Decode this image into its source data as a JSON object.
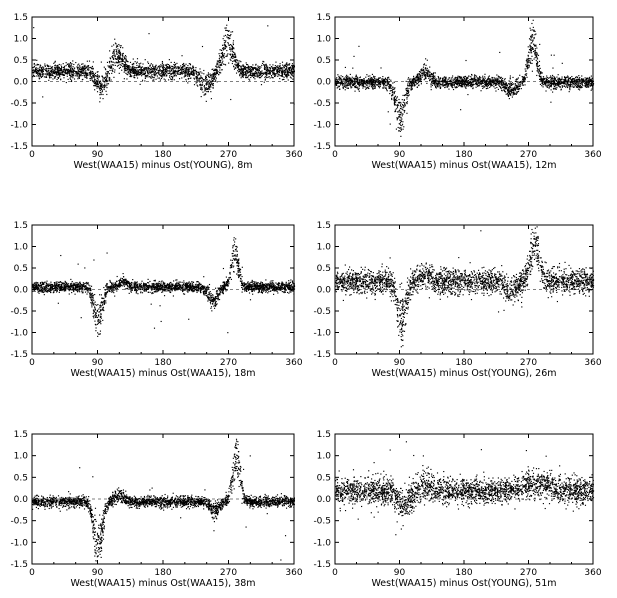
{
  "figure": {
    "x_ticks": [
      "0",
      "90",
      "180",
      "270",
      "360"
    ],
    "y_ticks": [
      "1.5",
      "1.0",
      "0.5",
      "0.0",
      "-0.5",
      "-1.0",
      "-1.5"
    ]
  },
  "chart_data": [
    {
      "type": "scatter",
      "xlabel": "West(WAA15) minus Ost(YOUNG), 8m",
      "xlim": [
        0,
        360
      ],
      "ylim": [
        -1.5,
        1.5
      ],
      "grid": false,
      "baseline": 0.25,
      "features": [
        {
          "x": 115,
          "peak": 0.8,
          "width": 11
        },
        {
          "x": 268,
          "peak": 1.1,
          "width": 10
        },
        {
          "x": 95,
          "peak": -0.2,
          "width": 12
        },
        {
          "x": 238,
          "peak": -0.15,
          "width": 12
        }
      ],
      "noise": 0.09
    },
    {
      "type": "scatter",
      "xlabel": "West(WAA15) minus Ost(WAA15), 12m",
      "xlim": [
        0,
        360
      ],
      "ylim": [
        -1.5,
        1.5
      ],
      "grid": false,
      "baseline": 0.0,
      "features": [
        {
          "x": 90,
          "peak": -1.05,
          "width": 9
        },
        {
          "x": 125,
          "peak": 0.3,
          "width": 9
        },
        {
          "x": 245,
          "peak": -0.25,
          "width": 10
        },
        {
          "x": 275,
          "peak": 1.2,
          "width": 8
        }
      ],
      "noise": 0.07
    },
    {
      "type": "scatter",
      "xlabel": "West(WAA15) minus Ost(WAA15), 18m",
      "xlim": [
        0,
        360
      ],
      "ylim": [
        -1.5,
        1.5
      ],
      "grid": false,
      "baseline": 0.07,
      "features": [
        {
          "x": 90,
          "peak": -0.95,
          "width": 8
        },
        {
          "x": 125,
          "peak": 0.22,
          "width": 8
        },
        {
          "x": 248,
          "peak": -0.3,
          "width": 9
        },
        {
          "x": 278,
          "peak": 1.05,
          "width": 7
        }
      ],
      "noise": 0.06
    },
    {
      "type": "scatter",
      "xlabel": "West(WAA15) minus Ost(YOUNG), 26m",
      "xlim": [
        0,
        360
      ],
      "ylim": [
        -1.5,
        1.5
      ],
      "grid": false,
      "baseline": 0.2,
      "features": [
        {
          "x": 92,
          "peak": -0.9,
          "width": 9
        },
        {
          "x": 125,
          "peak": 0.4,
          "width": 9
        },
        {
          "x": 245,
          "peak": -0.1,
          "width": 10
        },
        {
          "x": 278,
          "peak": 1.35,
          "width": 9
        }
      ],
      "noise": 0.14
    },
    {
      "type": "scatter",
      "xlabel": "West(WAA15) minus Ost(WAA15), 38m",
      "xlim": [
        0,
        360
      ],
      "ylim": [
        -1.5,
        1.5
      ],
      "grid": false,
      "baseline": -0.05,
      "features": [
        {
          "x": 90,
          "peak": -1.45,
          "width": 8
        },
        {
          "x": 120,
          "peak": 0.15,
          "width": 8
        },
        {
          "x": 250,
          "peak": -0.3,
          "width": 9
        },
        {
          "x": 280,
          "peak": 1.3,
          "width": 7
        }
      ],
      "noise": 0.06
    },
    {
      "type": "scatter",
      "xlabel": "West(WAA15) minus Ost(YOUNG), 51m",
      "xlim": [
        0,
        360
      ],
      "ylim": [
        -1.5,
        1.5
      ],
      "grid": false,
      "baseline": 0.2,
      "features": [
        {
          "x": 95,
          "peak": -0.2,
          "width": 12
        },
        {
          "x": 125,
          "peak": 0.4,
          "width": 10
        },
        {
          "x": 280,
          "peak": 0.4,
          "width": 30
        }
      ],
      "noise": 0.15
    }
  ]
}
